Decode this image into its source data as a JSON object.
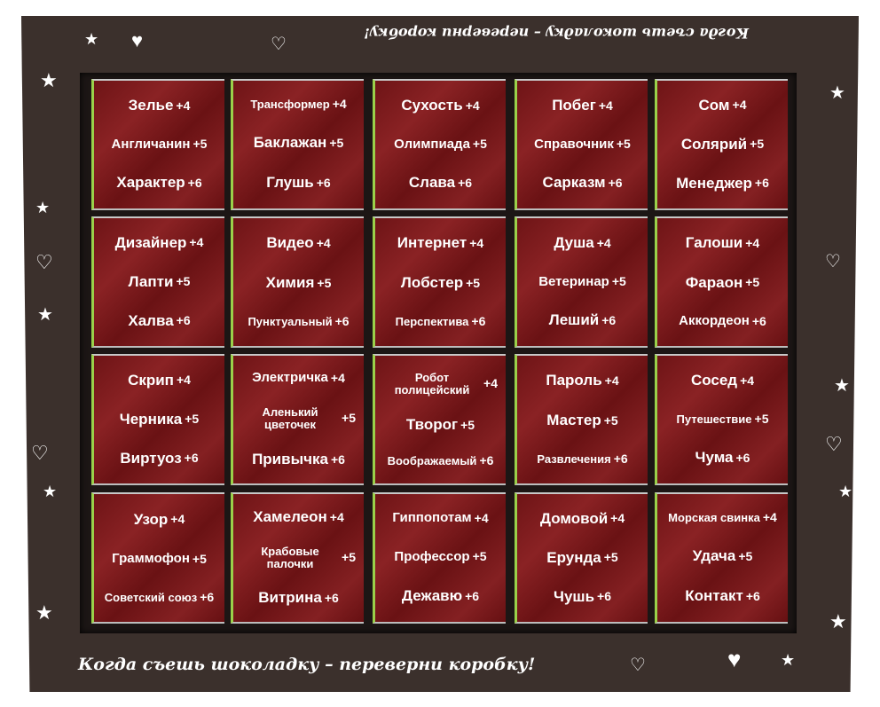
{
  "box": {
    "top_caption": "Когда съешь шоколадку – переверни коробку!",
    "bottom_caption": "Когда съешь шоколадку – переверни коробку!",
    "colors": {
      "frame": "#3b302c",
      "tile": "#7a1a1c",
      "foil": "#9ad04a"
    }
  },
  "tiles": [
    [
      {
        "w": "Зелье",
        "p": "+4"
      },
      {
        "w": "Англичанин",
        "p": "+5"
      },
      {
        "w": "Характер",
        "p": "+6"
      }
    ],
    [
      {
        "w": "Трансформер",
        "p": "+4"
      },
      {
        "w": "Баклажан",
        "p": "+5"
      },
      {
        "w": "Глушь",
        "p": "+6"
      }
    ],
    [
      {
        "w": "Сухость",
        "p": "+4"
      },
      {
        "w": "Олимпиада",
        "p": "+5"
      },
      {
        "w": "Слава",
        "p": "+6"
      }
    ],
    [
      {
        "w": "Побег",
        "p": "+4"
      },
      {
        "w": "Справочник",
        "p": "+5"
      },
      {
        "w": "Сарказм",
        "p": "+6"
      }
    ],
    [
      {
        "w": "Сом",
        "p": "+4"
      },
      {
        "w": "Солярий",
        "p": "+5"
      },
      {
        "w": "Менеджер",
        "p": "+6"
      }
    ],
    [
      {
        "w": "Дизайнер",
        "p": "+4"
      },
      {
        "w": "Лапти",
        "p": "+5"
      },
      {
        "w": "Халва",
        "p": "+6"
      }
    ],
    [
      {
        "w": "Видео",
        "p": "+4"
      },
      {
        "w": "Химия",
        "p": "+5"
      },
      {
        "w": "Пунктуальный",
        "p": "+6"
      }
    ],
    [
      {
        "w": "Интернет",
        "p": "+4"
      },
      {
        "w": "Лобстер",
        "p": "+5"
      },
      {
        "w": "Перспектива",
        "p": "+6"
      }
    ],
    [
      {
        "w": "Душа",
        "p": "+4"
      },
      {
        "w": "Ветеринар",
        "p": "+5"
      },
      {
        "w": "Леший",
        "p": "+6"
      }
    ],
    [
      {
        "w": "Галоши",
        "p": "+4"
      },
      {
        "w": "Фараон",
        "p": "+5"
      },
      {
        "w": "Аккордеон",
        "p": "+6"
      }
    ],
    [
      {
        "w": "Скрип",
        "p": "+4"
      },
      {
        "w": "Черника",
        "p": "+5"
      },
      {
        "w": "Виртуоз",
        "p": "+6"
      }
    ],
    [
      {
        "w": "Электричка",
        "p": "+4"
      },
      {
        "w": "Аленький цветочек",
        "p": "+5"
      },
      {
        "w": "Привычка",
        "p": "+6"
      }
    ],
    [
      {
        "w": "Робот полицейский",
        "p": "+4"
      },
      {
        "w": "Творог",
        "p": "+5"
      },
      {
        "w": "Воображаемый",
        "p": "+6"
      }
    ],
    [
      {
        "w": "Пароль",
        "p": "+4"
      },
      {
        "w": "Мастер",
        "p": "+5"
      },
      {
        "w": "Развлечения",
        "p": "+6"
      }
    ],
    [
      {
        "w": "Сосед",
        "p": "+4"
      },
      {
        "w": "Путешествие",
        "p": "+5"
      },
      {
        "w": "Чума",
        "p": "+6"
      }
    ],
    [
      {
        "w": "Узор",
        "p": "+4"
      },
      {
        "w": "Граммофон",
        "p": "+5"
      },
      {
        "w": "Советский союз",
        "p": "+6"
      }
    ],
    [
      {
        "w": "Хамелеон",
        "p": "+4"
      },
      {
        "w": "Крабовые палочки",
        "p": "+5"
      },
      {
        "w": "Витрина",
        "p": "+6"
      }
    ],
    [
      {
        "w": "Гиппопотам",
        "p": "+4"
      },
      {
        "w": "Профессор",
        "p": "+5"
      },
      {
        "w": "Дежавю",
        "p": "+6"
      }
    ],
    [
      {
        "w": "Домовой",
        "p": "+4"
      },
      {
        "w": "Ерунда",
        "p": "+5"
      },
      {
        "w": "Чушь",
        "p": "+6"
      }
    ],
    [
      {
        "w": "Морская свинка",
        "p": "+4"
      },
      {
        "w": "Удача",
        "p": "+5"
      },
      {
        "w": "Контакт",
        "p": "+6"
      }
    ]
  ]
}
